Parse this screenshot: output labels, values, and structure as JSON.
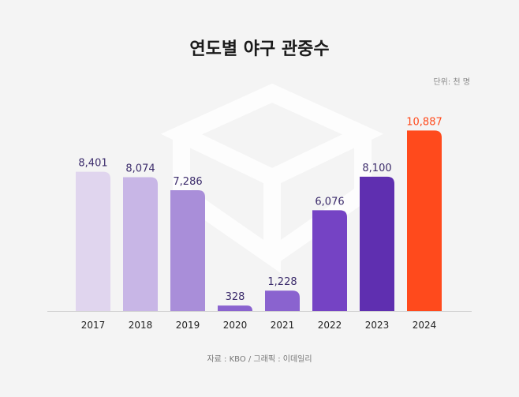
{
  "title": "연도별 야구 관중수",
  "unit_note": "단위: 천 명",
  "source_note": "자료 : KBO / 그래픽 : 이데일리",
  "colors": {
    "bars": [
      "#e0d5ee",
      "#c8b6e6",
      "#a98ed9",
      "#8a63cf",
      "#8a63cf",
      "#7543c4",
      "#5f2fb0",
      "#ff4a1c"
    ],
    "value_labels": [
      "#3b2b6b",
      "#3b2b6b",
      "#3b2b6b",
      "#3b2b6b",
      "#3b2b6b",
      "#3b2b6b",
      "#3b2b6b",
      "#ff4a1c"
    ]
  },
  "chart_data": {
    "type": "bar",
    "title": "연도별 야구 관중수",
    "xlabel": "",
    "ylabel": "",
    "categories": [
      "2017",
      "2018",
      "2019",
      "2020",
      "2021",
      "2022",
      "2023",
      "2024"
    ],
    "values": [
      8401,
      8074,
      7286,
      328,
      1228,
      6076,
      8100,
      10887
    ],
    "value_labels": [
      "8,401",
      "8,074",
      "7,286",
      "328",
      "1,228",
      "6,076",
      "8,100",
      "10,887"
    ],
    "ylim": [
      0,
      12000
    ],
    "grid": false,
    "legend": "none"
  }
}
